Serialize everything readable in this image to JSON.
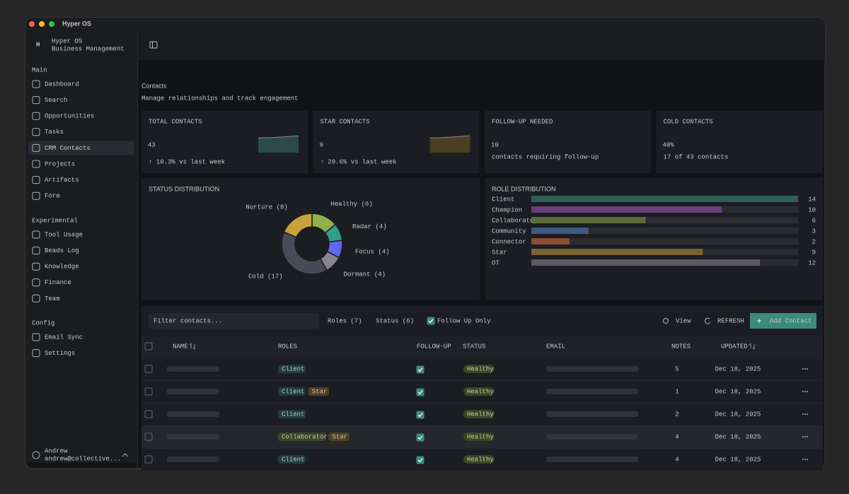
{
  "window": {
    "title": "Hyper OS"
  },
  "sidebar": {
    "logo": "H",
    "app_name": "Hyper OS",
    "app_subtitle": "Business Management",
    "active_item": "CRM Contacts",
    "sections": [
      {
        "title": "Main",
        "items": [
          "Dashboard",
          "Search",
          "Opportunities",
          "Tasks",
          "CRM Contacts",
          "Projects",
          "Artifacts",
          "Form"
        ]
      },
      {
        "title": "Experimental",
        "items": [
          "Tool Usage",
          "Beads Log",
          "Knowledge",
          "Finance",
          "Team"
        ]
      },
      {
        "title": "Config",
        "items": [
          "Email Sync",
          "Settings"
        ]
      }
    ],
    "user": {
      "name": "Andrew",
      "email": "andrew@collective..."
    }
  },
  "header": {
    "title": "Contacts",
    "subtitle": "Manage relationships and track engagement"
  },
  "stats": [
    {
      "label": "TOTAL CONTACTS",
      "value": "43",
      "change": "↑ 10.3% vs last week",
      "sparkline_color": "#2b4a45"
    },
    {
      "label": "STAR CONTACTS",
      "value": "9",
      "change": "↑ 28.6% vs last week",
      "sparkline_color": "#4a3f22"
    },
    {
      "label": "FOLLOW-UP NEEDED",
      "value": "10",
      "note": "contacts requiring follow-up"
    },
    {
      "label": "COLD CONTACTS",
      "value": "40%",
      "note": "17 of 43 contacts"
    }
  ],
  "status_distribution": {
    "type": "pie",
    "title": "STATUS DISTRIBUTION",
    "categories": [
      "Healthy",
      "Radar",
      "Focus",
      "Dormant",
      "Cold",
      "Nurture"
    ],
    "labels": [
      "Healthy (6)",
      "Radar (4)",
      "Focus (4)",
      "Dormant (4)",
      "Cold (17)",
      "Nurture (8)"
    ],
    "values": [
      6,
      4,
      4,
      4,
      17,
      8
    ],
    "colors": [
      "#8fb04a",
      "#2f9e8a",
      "#6366f1",
      "#85858b",
      "#474b57",
      "#c9a23e"
    ]
  },
  "role_distribution": {
    "type": "bar",
    "title": "ROLE DISTRIBUTION",
    "categories": [
      "Client",
      "Champion",
      "Collaborator",
      "Community",
      "Connector",
      "Star",
      "OT"
    ],
    "values": [
      14,
      10,
      6,
      3,
      2,
      9,
      12
    ],
    "colors": [
      "#2f5f58",
      "#6a3f7c",
      "#5b6b3a",
      "#3f5a80",
      "#8a4c32",
      "#7a6330",
      "#5a5a5e"
    ],
    "xlim": [
      0,
      14
    ]
  },
  "toolbar": {
    "filter_placeholder": "Filter contacts...",
    "roles": "Roles (7)",
    "status": "Status (6)",
    "follow_up_only": "Follow Up Only",
    "follow_up_checked": true,
    "view": "View",
    "refresh": "REFRESH",
    "add": "Add Contact"
  },
  "table": {
    "columns": [
      "NAME",
      "ROLES",
      "FOLLOW-UP",
      "STATUS",
      "EMAIL",
      "NOTES",
      "UPDATED"
    ],
    "rows": [
      {
        "roles": [
          "Client"
        ],
        "follow_up": true,
        "status": "Healthy",
        "notes": 5,
        "updated": "Dec 18, 2025"
      },
      {
        "roles": [
          "Client",
          "Star"
        ],
        "follow_up": true,
        "status": "Healthy",
        "notes": 1,
        "updated": "Dec 18, 2025"
      },
      {
        "roles": [
          "Client"
        ],
        "follow_up": true,
        "status": "Healthy",
        "notes": 2,
        "updated": "Dec 18, 2025"
      },
      {
        "roles": [
          "Collaborator",
          "Star"
        ],
        "follow_up": true,
        "status": "Healthy",
        "notes": 4,
        "updated": "Dec 18, 2025",
        "highlighted": true
      },
      {
        "roles": [
          "Client"
        ],
        "follow_up": true,
        "status": "Healthy",
        "notes": 4,
        "updated": "Dec 18, 2025"
      }
    ]
  }
}
